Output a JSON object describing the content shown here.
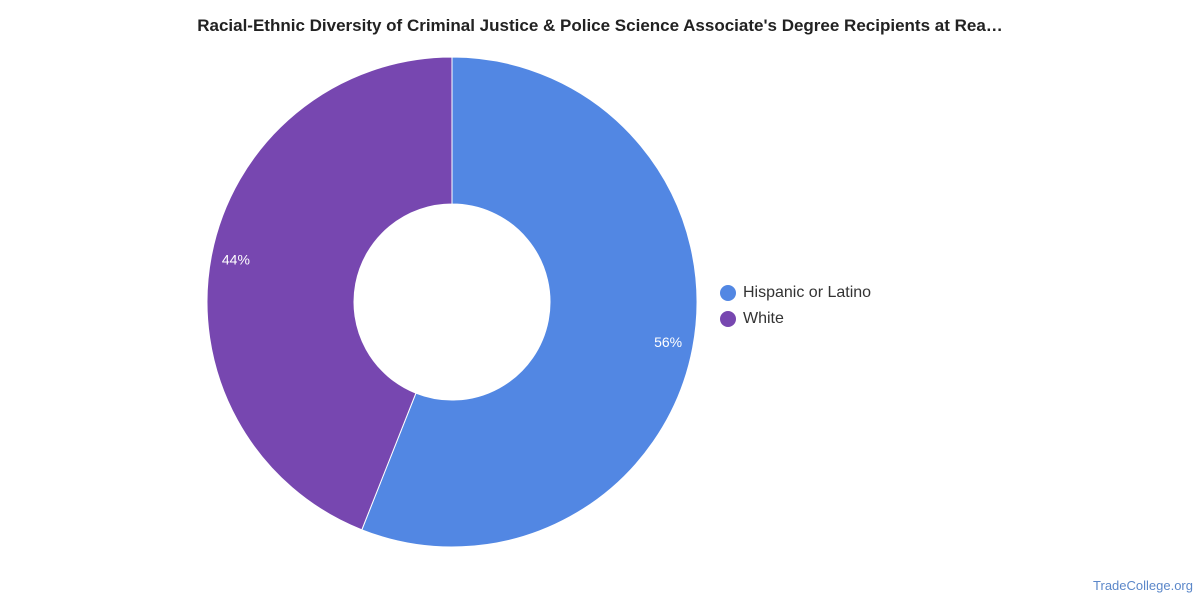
{
  "chart_data": {
    "type": "pie",
    "title": "Racial-Ethnic Diversity of Criminal Justice & Police Science Associate's Degree Recipients at Rea…",
    "legend_position": "right",
    "donut": true,
    "categories": [
      "Hispanic or Latino",
      "White"
    ],
    "values": [
      56,
      44
    ],
    "value_labels": [
      "56%",
      "44%"
    ],
    "colors": [
      "#5287E3",
      "#7747B0"
    ]
  },
  "source_credit": "TradeCollege.org"
}
